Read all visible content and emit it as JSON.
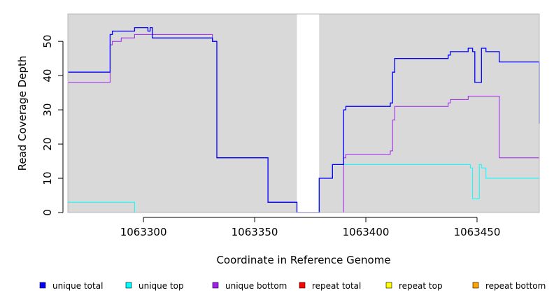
{
  "chart_data": {
    "type": "line",
    "title": "",
    "xlabel": "Coordinate in Reference Genome",
    "ylabel": "Read Coverage Depth",
    "xlim": [
      1063266,
      1063478
    ],
    "ylim": [
      0,
      58
    ],
    "xticks": [
      1063300,
      1063350,
      1063400,
      1063450
    ],
    "yticks": [
      0,
      10,
      20,
      30,
      40,
      50
    ],
    "grid": false,
    "background_color": "#d9d9d9",
    "gap_region": [
      1063369,
      1063379
    ],
    "legend_position": "bottom",
    "series": [
      {
        "name": "unique total",
        "color": "#0000ff",
        "x": [
          1063266,
          1063285,
          1063286,
          1063290,
          1063296,
          1063302,
          1063303,
          1063304,
          1063331,
          1063333,
          1063356,
          1063369,
          1063379,
          1063385,
          1063390,
          1063391,
          1063411,
          1063412,
          1063413,
          1063437,
          1063438,
          1063442,
          1063446,
          1063448,
          1063449,
          1063452,
          1063454,
          1063460,
          1063478
        ],
        "y": [
          41,
          52,
          53,
          53,
          54,
          53,
          54,
          51,
          50,
          16,
          3,
          0,
          10,
          14,
          30,
          31,
          32,
          41,
          45,
          46,
          47,
          47,
          48,
          47,
          38,
          48,
          47,
          44,
          26
        ]
      },
      {
        "name": "unique top",
        "color": "#00ffff",
        "x": [
          1063266,
          1063296,
          1063369,
          1063379,
          1063385,
          1063447,
          1063448,
          1063451,
          1063452,
          1063454,
          1063478
        ],
        "y": [
          3,
          0,
          0,
          10,
          14,
          13,
          4,
          14,
          13,
          10,
          10
        ]
      },
      {
        "name": "unique bottom",
        "color": "#a020f0",
        "x": [
          1063266,
          1063285,
          1063286,
          1063290,
          1063296,
          1063331,
          1063333,
          1063356,
          1063369,
          1063379,
          1063390,
          1063391,
          1063411,
          1063412,
          1063413,
          1063437,
          1063438,
          1063442,
          1063446,
          1063460,
          1063478
        ],
        "y": [
          38,
          49,
          50,
          51,
          52,
          50,
          16,
          3,
          0,
          0,
          16,
          17,
          18,
          27,
          31,
          32,
          33,
          33,
          34,
          16,
          16
        ]
      },
      {
        "name": "repeat total",
        "color": "#ff0000",
        "x": [
          1063266,
          1063478
        ],
        "y": [
          0,
          0
        ]
      },
      {
        "name": "repeat top",
        "color": "#ffff00",
        "x": [
          1063266,
          1063478
        ],
        "y": [
          0,
          0
        ]
      },
      {
        "name": "repeat bottom",
        "color": "#ffa500",
        "x": [
          1063266,
          1063478
        ],
        "y": [
          0,
          0
        ]
      }
    ]
  }
}
